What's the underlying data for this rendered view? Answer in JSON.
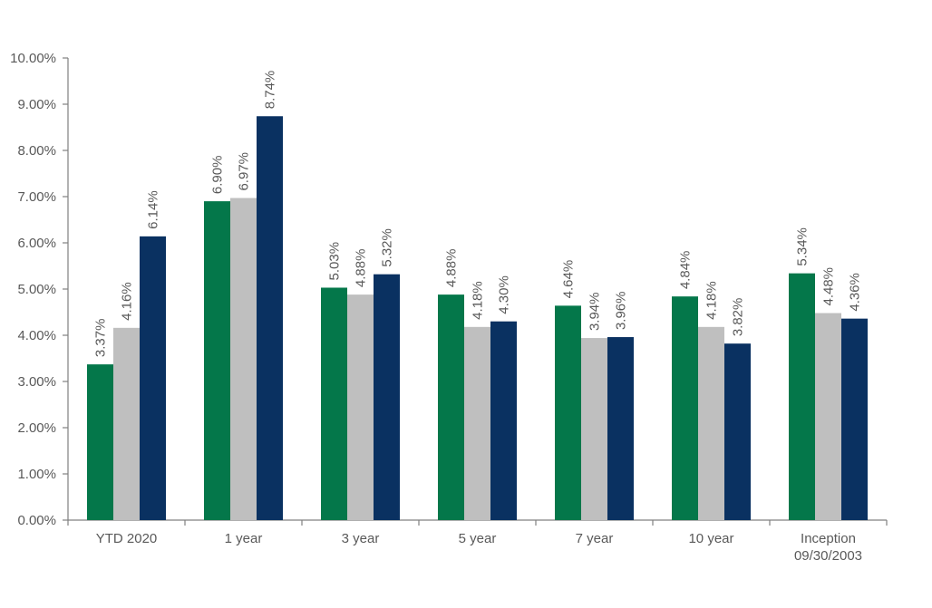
{
  "chart_data": {
    "type": "bar",
    "title": "",
    "xlabel": "",
    "ylabel": "",
    "ylim": [
      0,
      10
    ],
    "y_tick_step": 1,
    "y_tick_format": "percent_2dp",
    "grid": false,
    "legend": "none",
    "categories": [
      [
        "YTD 2020"
      ],
      [
        "1 year"
      ],
      [
        "3 year"
      ],
      [
        "5 year"
      ],
      [
        "7 year"
      ],
      [
        "10 year"
      ],
      [
        "Inception",
        "09/30/2003"
      ]
    ],
    "series": [
      {
        "color": "#04774a",
        "values": [
          3.37,
          6.9,
          5.03,
          4.88,
          4.64,
          4.84,
          5.34
        ]
      },
      {
        "color": "#bfbfbf",
        "values": [
          4.16,
          6.97,
          4.88,
          4.18,
          3.94,
          4.18,
          4.48
        ]
      },
      {
        "color": "#0a3161",
        "values": [
          6.14,
          8.74,
          5.32,
          4.3,
          3.96,
          3.82,
          4.36
        ]
      }
    ],
    "data_labels": [
      [
        "3.37%",
        "6.90%",
        "5.03%",
        "4.88%",
        "4.64%",
        "4.84%",
        "5.34%"
      ],
      [
        "4.16%",
        "6.97%",
        "4.88%",
        "4.18%",
        "3.94%",
        "4.18%",
        "4.48%"
      ],
      [
        "6.14%",
        "8.74%",
        "5.32%",
        "4.30%",
        "3.96%",
        "3.82%",
        "4.36%"
      ]
    ],
    "y_tick_labels": [
      "0.00%",
      "1.00%",
      "2.00%",
      "3.00%",
      "4.00%",
      "5.00%",
      "6.00%",
      "7.00%",
      "8.00%",
      "9.00%",
      "10.00%"
    ]
  }
}
